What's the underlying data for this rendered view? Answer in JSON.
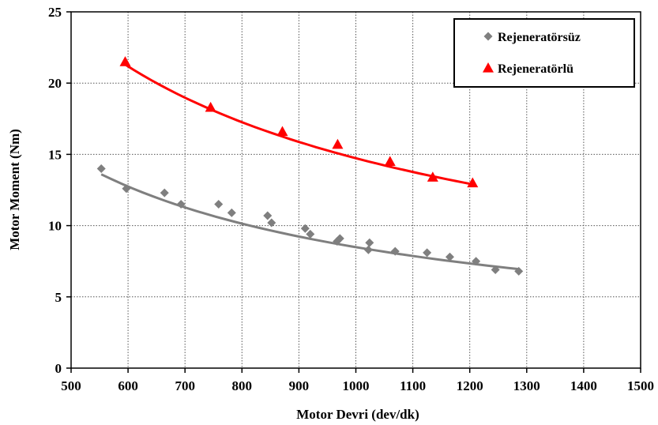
{
  "chart_data": {
    "type": "scatter",
    "xlabel": "Motor Devri (dev/dk)",
    "ylabel": "Motor Moment (Nm)",
    "xlim": [
      500,
      1500
    ],
    "ylim": [
      0,
      25
    ],
    "x_ticks": [
      "500",
      "600",
      "700",
      "800",
      "900",
      "1000",
      "1100",
      "1200",
      "1300",
      "1400",
      "1500"
    ],
    "y_ticks": [
      "0",
      "5",
      "10",
      "15",
      "20",
      "25"
    ],
    "grid": true,
    "legend_position": "top-right",
    "series": [
      {
        "name": "Rejeneratörsüz",
        "color": "#7f7f7f",
        "marker": "diamond",
        "points": [
          [
            553,
            14.0
          ],
          [
            597,
            12.6
          ],
          [
            664,
            12.3
          ],
          [
            693,
            11.5
          ],
          [
            759,
            11.5
          ],
          [
            782,
            10.9
          ],
          [
            845,
            10.7
          ],
          [
            852,
            10.2
          ],
          [
            911,
            9.8
          ],
          [
            920,
            9.4
          ],
          [
            967,
            8.9
          ],
          [
            972,
            9.1
          ],
          [
            1022,
            8.3
          ],
          [
            1024,
            8.8
          ],
          [
            1069,
            8.2
          ],
          [
            1125,
            8.1
          ],
          [
            1165,
            7.8
          ],
          [
            1211,
            7.5
          ],
          [
            1245,
            6.9
          ],
          [
            1286,
            6.8
          ]
        ],
        "trendline": {
          "x_range": [
            553,
            1286
          ],
          "y_range": [
            13.6,
            6.95
          ]
        }
      },
      {
        "name": "Rejeneratörlü",
        "color": "#ff0000",
        "marker": "triangle",
        "points": [
          [
            595,
            21.5
          ],
          [
            745,
            18.3
          ],
          [
            871,
            16.6
          ],
          [
            968,
            15.7
          ],
          [
            1060,
            14.5
          ],
          [
            1135,
            13.4
          ],
          [
            1205,
            13.0
          ]
        ],
        "trendline": {
          "x_range": [
            595,
            1205
          ],
          "y_range": [
            21.3,
            12.9
          ]
        }
      }
    ]
  }
}
